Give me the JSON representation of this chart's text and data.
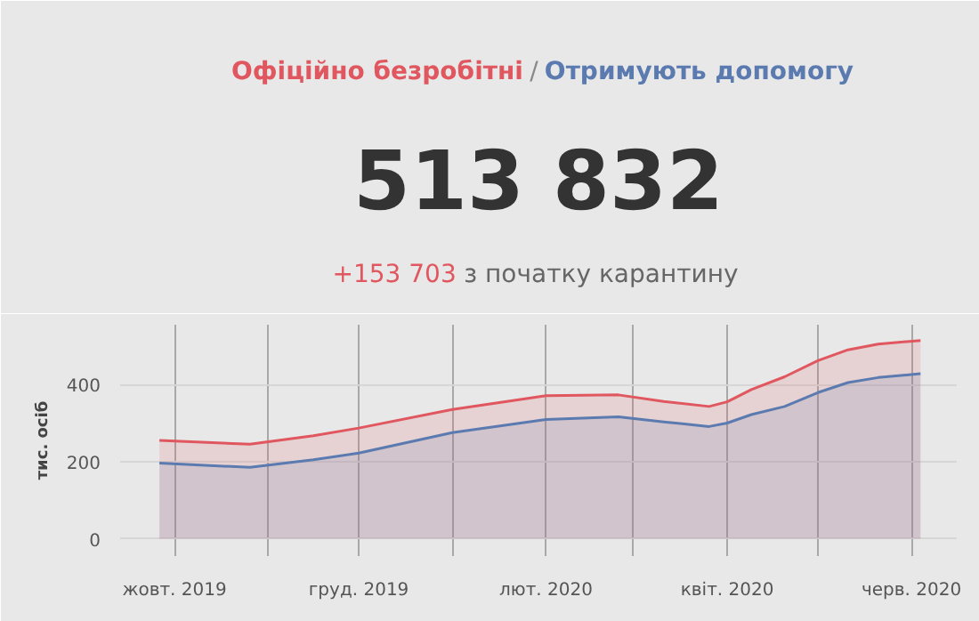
{
  "chart_data": {
    "type": "area",
    "subtitle": "513 832",
    "annotations": [
      "/",
      "+153 703",
      "з початку карантину"
    ],
    "ylabel": "тис. осіб",
    "x": [
      "2019-09-26",
      "2019-10-26",
      "2019-11-16",
      "2019-12-01",
      "2020-01-01",
      "2020-02-01",
      "2020-02-25",
      "2020-03-11",
      "2020-03-26",
      "2020-04-01",
      "2020-04-09",
      "2020-04-20",
      "2020-05-01",
      "2020-05-11",
      "2020-05-21",
      "2020-06-04"
    ],
    "series": [
      {
        "name": "Офіційно безробітні",
        "color": "#e0575f",
        "values": [
          255,
          245,
          267,
          287,
          335,
          371,
          373,
          356,
          343,
          355,
          387,
          420,
          462,
          490,
          505,
          514
        ]
      },
      {
        "name": "Отримують допомогу",
        "color": "#5b7bb0",
        "values": [
          196,
          185,
          205,
          222,
          275,
          309,
          316,
          303,
          291,
          300,
          322,
          343,
          379,
          405,
          418,
          428
        ]
      }
    ],
    "xlim": [
      "2019-09-13",
      "2020-06-16"
    ],
    "xticks": [
      {
        "value": "2019-10-01",
        "label": "жовт. 2019"
      },
      {
        "value": "2019-11-01",
        "label": null
      },
      {
        "value": "2019-12-01",
        "label": "груд. 2019"
      },
      {
        "value": "2020-01-01",
        "label": null
      },
      {
        "value": "2020-02-01",
        "label": "лют. 2020"
      },
      {
        "value": "2020-03-01",
        "label": null
      },
      {
        "value": "2020-04-01",
        "label": "квіт. 2020"
      },
      {
        "value": "2020-05-01",
        "label": null
      },
      {
        "value": "2020-06-01",
        "label": "черв. 2020"
      }
    ],
    "ylim": [
      -45,
      555
    ],
    "yticks": [
      0,
      200,
      400
    ],
    "grid": true
  }
}
